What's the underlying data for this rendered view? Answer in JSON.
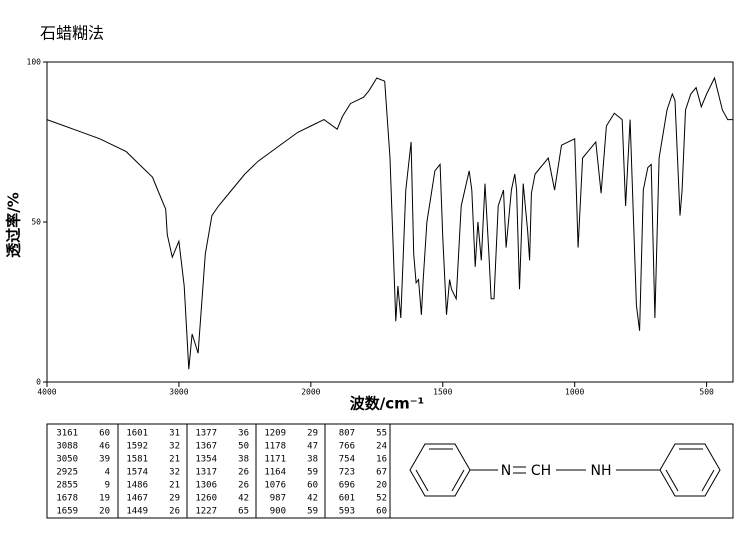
{
  "chart_data": {
    "type": "line",
    "title": "石蜡糊法",
    "x_label": "波数/cm⁻¹",
    "y_label": "透过率/%",
    "xlim": [
      4000,
      400
    ],
    "x_break": 2000,
    "xticks": [
      4000,
      3000,
      2000,
      1500,
      1000,
      500
    ],
    "ylim": [
      0,
      100
    ],
    "yticks": [
      0,
      50,
      100
    ],
    "color": "#000000",
    "x": [
      4000,
      3800,
      3600,
      3400,
      3300,
      3200,
      3161,
      3100,
      3088,
      3050,
      3000,
      2960,
      2925,
      2900,
      2855,
      2800,
      2750,
      2700,
      2600,
      2500,
      2400,
      2300,
      2200,
      2100,
      2000,
      1950,
      1900,
      1880,
      1850,
      1800,
      1780,
      1750,
      1720,
      1700,
      1678,
      1670,
      1659,
      1640,
      1620,
      1610,
      1601,
      1592,
      1581,
      1574,
      1560,
      1530,
      1510,
      1500,
      1486,
      1474,
      1467,
      1449,
      1430,
      1400,
      1390,
      1377,
      1367,
      1354,
      1340,
      1325,
      1317,
      1306,
      1290,
      1270,
      1260,
      1240,
      1227,
      1220,
      1209,
      1195,
      1178,
      1171,
      1164,
      1150,
      1100,
      1076,
      1050,
      1000,
      987,
      970,
      950,
      920,
      900,
      880,
      850,
      820,
      807,
      790,
      766,
      754,
      740,
      723,
      710,
      696,
      680,
      650,
      630,
      620,
      601,
      593,
      580,
      560,
      540,
      520,
      500,
      470,
      440,
      420,
      400
    ],
    "values": [
      82,
      79,
      76,
      72,
      68,
      64,
      60,
      54,
      46,
      39,
      44,
      30,
      4,
      15,
      9,
      40,
      52,
      55,
      60,
      65,
      69,
      72,
      75,
      78,
      80,
      82,
      79,
      83,
      87,
      89,
      91,
      95,
      94,
      70,
      19,
      30,
      20,
      60,
      75,
      40,
      31,
      32,
      21,
      32,
      50,
      66,
      68,
      45,
      21,
      32,
      29,
      26,
      55,
      66,
      60,
      36,
      50,
      38,
      62,
      40,
      26,
      26,
      55,
      60,
      42,
      60,
      65,
      60,
      29,
      62,
      47,
      38,
      59,
      65,
      70,
      60,
      74,
      76,
      42,
      70,
      72,
      75,
      59,
      80,
      84,
      82,
      55,
      82,
      24,
      16,
      60,
      67,
      68,
      20,
      70,
      85,
      90,
      88,
      52,
      60,
      85,
      90,
      92,
      86,
      90,
      95,
      85,
      82,
      82
    ]
  },
  "peak_table": [
    [
      [
        "3161",
        "60"
      ],
      [
        "3088",
        "46"
      ],
      [
        "3050",
        "39"
      ],
      [
        "2925",
        "4"
      ],
      [
        "2855",
        "9"
      ],
      [
        "1678",
        "19"
      ],
      [
        "1659",
        "20"
      ]
    ],
    [
      [
        "1601",
        "31"
      ],
      [
        "1592",
        "32"
      ],
      [
        "1581",
        "21"
      ],
      [
        "1574",
        "32"
      ],
      [
        "1486",
        "21"
      ],
      [
        "1467",
        "29"
      ],
      [
        "1449",
        "26"
      ]
    ],
    [
      [
        "1377",
        "36"
      ],
      [
        "1367",
        "50"
      ],
      [
        "1354",
        "38"
      ],
      [
        "1317",
        "26"
      ],
      [
        "1306",
        "26"
      ],
      [
        "1260",
        "42"
      ],
      [
        "1227",
        "65"
      ]
    ],
    [
      [
        "1209",
        "29"
      ],
      [
        "1178",
        "47"
      ],
      [
        "1171",
        "38"
      ],
      [
        "1164",
        "59"
      ],
      [
        "1076",
        "60"
      ],
      [
        "987",
        "42"
      ],
      [
        "900",
        "59"
      ]
    ],
    [
      [
        "807",
        "55"
      ],
      [
        "766",
        "24"
      ],
      [
        "754",
        "16"
      ],
      [
        "723",
        "67"
      ],
      [
        "696",
        "20"
      ],
      [
        "601",
        "52"
      ],
      [
        "593",
        "60"
      ]
    ]
  ],
  "structure": {
    "labels": [
      "N",
      "CH",
      "NH"
    ]
  }
}
